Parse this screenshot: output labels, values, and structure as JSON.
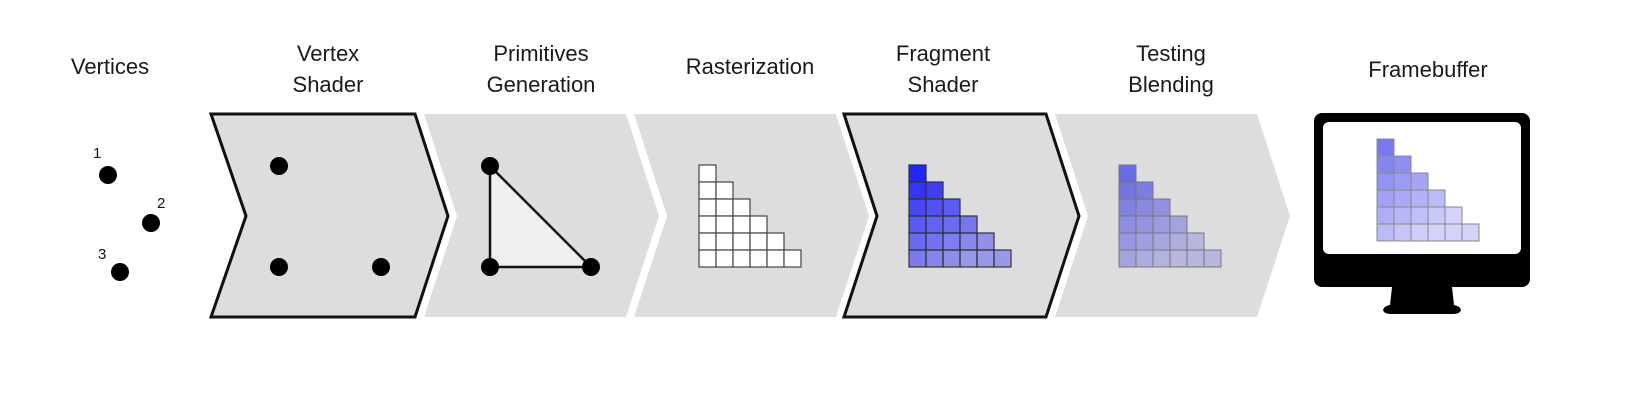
{
  "stages": [
    {
      "id": "vertices",
      "label": "Vertices"
    },
    {
      "id": "vertex-shader",
      "label": "Vertex\nShader"
    },
    {
      "id": "primitives-generation",
      "label": "Primitives\nGeneration"
    },
    {
      "id": "rasterization",
      "label": "Rasterization"
    },
    {
      "id": "fragment-shader",
      "label": "Fragment\nShader"
    },
    {
      "id": "testing-blending",
      "label": "Testing\nBlending"
    },
    {
      "id": "framebuffer",
      "label": "Framebuffer"
    }
  ],
  "vertex_numbers": [
    "1",
    "2",
    "3"
  ],
  "colors": {
    "stage_fill": "#dddddd",
    "programmable_outline": "#111111",
    "fragment_blue": "#1a1aff",
    "monitor": "#000000"
  }
}
